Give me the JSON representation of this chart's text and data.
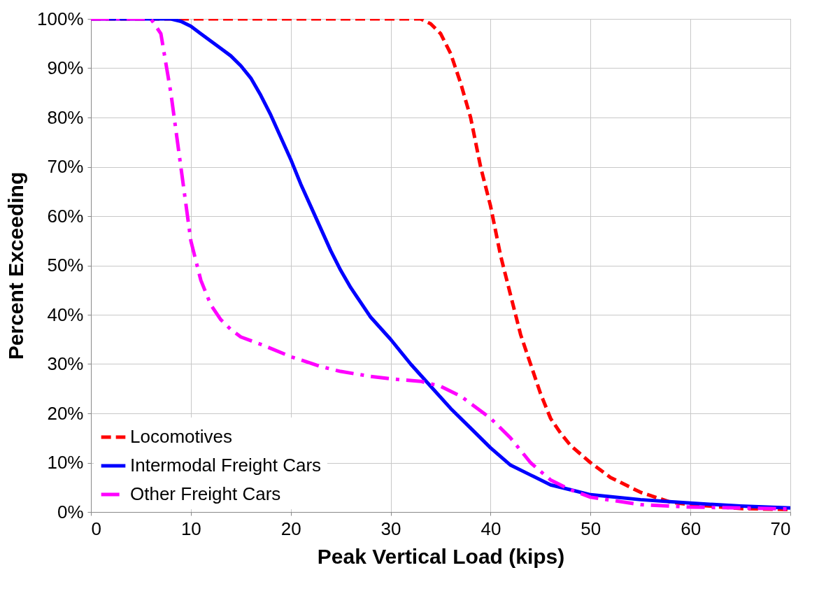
{
  "chart_data": {
    "type": "line",
    "xlabel": "Peak Vertical Load (kips)",
    "ylabel": "Percent Exceeding",
    "xlim": [
      0,
      70
    ],
    "xticks": [
      0,
      10,
      20,
      30,
      40,
      50,
      60,
      70
    ],
    "ylim": [
      0,
      100
    ],
    "yticks": [
      {
        "value": 0,
        "label": "0%"
      },
      {
        "value": 10,
        "label": "10%"
      },
      {
        "value": 20,
        "label": "20%"
      },
      {
        "value": 30,
        "label": "30%"
      },
      {
        "value": 40,
        "label": "40%"
      },
      {
        "value": 50,
        "label": "50%"
      },
      {
        "value": 60,
        "label": "60%"
      },
      {
        "value": 70,
        "label": "70%"
      },
      {
        "value": 80,
        "label": "80%"
      },
      {
        "value": 90,
        "label": "90%"
      },
      {
        "value": 100,
        "label": "100%"
      }
    ],
    "grid": true,
    "legend": "bottom left",
    "marker": "none",
    "series": [
      {
        "name": "Locomotives",
        "color": "#ff0000",
        "line_style": "dashed",
        "x": [
          0,
          10,
          20,
          30,
          33,
          34,
          35,
          36,
          37,
          38,
          39,
          40,
          41,
          42,
          43,
          44,
          45,
          46,
          47,
          48,
          50,
          52,
          55,
          58,
          60,
          65,
          70
        ],
        "values": [
          100,
          100,
          100,
          100,
          100,
          99,
          97,
          93,
          87,
          80,
          70,
          62,
          52,
          44,
          36,
          30,
          24,
          19,
          16,
          13.5,
          10,
          7,
          4,
          2,
          1.5,
          0.7,
          0.5
        ]
      },
      {
        "name": "Intermodal Freight Cars",
        "color": "#0000ff",
        "line_style": "solid",
        "x": [
          0,
          8,
          9,
          10,
          11,
          12,
          13,
          14,
          15,
          16,
          17,
          18,
          19,
          20,
          21,
          22,
          23,
          24,
          25,
          26,
          27,
          28,
          30,
          32,
          34,
          36,
          38,
          40,
          42,
          44,
          46,
          48,
          50,
          55,
          60,
          65,
          70
        ],
        "values": [
          100,
          100,
          99.5,
          98.5,
          97,
          95.5,
          94,
          92.5,
          90.5,
          88,
          84.5,
          80.5,
          76,
          71.5,
          66.5,
          62,
          57.5,
          53,
          49,
          45.5,
          42.5,
          39.5,
          35,
          30,
          25.5,
          21,
          17,
          13,
          9.5,
          7.5,
          5.5,
          4.5,
          3.5,
          2.5,
          1.8,
          1.2,
          0.8
        ]
      },
      {
        "name": "Other Freight Cars",
        "color": "#ff00ff",
        "line_style": "dashdot",
        "x": [
          0,
          6,
          7,
          8,
          9,
          10,
          11,
          12,
          13,
          14,
          15,
          17,
          20,
          23,
          25,
          28,
          30,
          33,
          35,
          37,
          40,
          42,
          44,
          46,
          48,
          50,
          55,
          60,
          65,
          70
        ],
        "values": [
          100,
          100,
          97,
          85,
          70,
          55,
          47,
          42,
          39,
          37,
          35.5,
          34,
          31.5,
          29.5,
          28.5,
          27.5,
          27,
          26.5,
          25.5,
          23.5,
          19,
          15,
          10,
          6.5,
          4.5,
          3,
          1.5,
          1,
          0.8,
          0.6
        ]
      }
    ]
  }
}
